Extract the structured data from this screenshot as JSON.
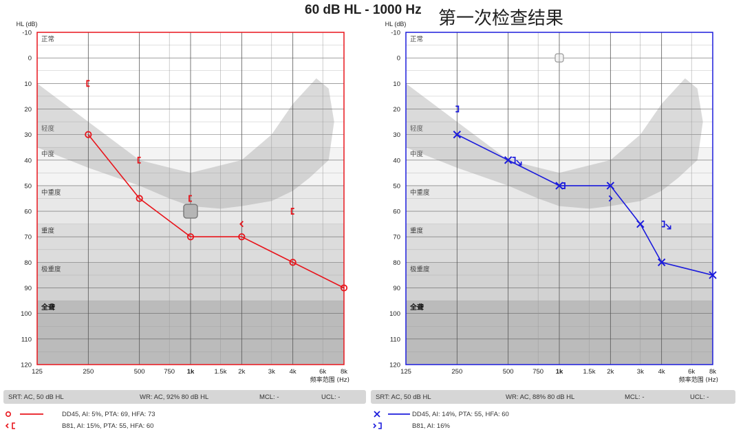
{
  "header": {
    "signal": "60 dB HL  -  1000 Hz",
    "title": "第一次检查结果"
  },
  "axes": {
    "y_label": "HL (dB)",
    "x_label": "频率范围 (Hz)",
    "y_ticks": [
      "-10",
      "0",
      "10",
      "20",
      "30",
      "40",
      "50",
      "60",
      "70",
      "80",
      "90",
      "100",
      "110",
      "120"
    ],
    "x_ticks": [
      {
        "f": 125,
        "label": "125",
        "bold": false
      },
      {
        "f": 250,
        "label": "250",
        "bold": false
      },
      {
        "f": 500,
        "label": "500",
        "bold": false
      },
      {
        "f": 750,
        "label": "750",
        "bold": false
      },
      {
        "f": 1000,
        "label": "1k",
        "bold": true
      },
      {
        "f": 1500,
        "label": "1.5k",
        "bold": false
      },
      {
        "f": 2000,
        "label": "2k",
        "bold": false
      },
      {
        "f": 3000,
        "label": "3k",
        "bold": false
      },
      {
        "f": 4000,
        "label": "4k",
        "bold": false
      },
      {
        "f": 6000,
        "label": "6k",
        "bold": false
      },
      {
        "f": 8000,
        "label": "8k",
        "bold": false
      }
    ],
    "ylim": [
      -10,
      120
    ],
    "xscale": "log",
    "xlim": [
      125,
      8000
    ]
  },
  "bands": [
    {
      "label": "正常",
      "from": -10,
      "to": 25,
      "color": "#ffffff",
      "bold": false
    },
    {
      "label": "轻度",
      "from": 25,
      "to": 35,
      "color": "#ffffff",
      "bold": false
    },
    {
      "label": "中度",
      "from": 35,
      "to": 50,
      "color": "#f4f4f4",
      "bold": false
    },
    {
      "label": "中重度",
      "from": 50,
      "to": 65,
      "color": "#e8e8e8",
      "bold": false
    },
    {
      "label": "重度",
      "from": 65,
      "to": 80,
      "color": "#dcdcdc",
      "bold": false
    },
    {
      "label": "极重度",
      "from": 80,
      "to": 95,
      "color": "#d2d2d2",
      "bold": false
    },
    {
      "label": "全聋",
      "from": 95,
      "to": 120,
      "color": "#bbbbbb",
      "bold": true
    }
  ],
  "chart_data": [
    {
      "type": "line",
      "ear": "right",
      "color": "#e8141b",
      "series": [
        {
          "name": "AC",
          "symbol": "circle",
          "x": [
            250,
            500,
            1000,
            2000,
            4000,
            8000
          ],
          "y": [
            30,
            55,
            70,
            70,
            80,
            90
          ]
        },
        {
          "name": "BC",
          "symbol": "bracket-left",
          "x": [
            250,
            500,
            1000,
            2000,
            4000
          ],
          "y": [
            10,
            40,
            55,
            65,
            60
          ]
        }
      ],
      "stimulus": {
        "x": 1000,
        "y": 60
      },
      "footer": {
        "srt": "SRT: AC, 50 dB HL",
        "wr": "WR: AC, 92% 80 dB HL",
        "mcl": "MCL: -",
        "ucl": "UCL: -"
      },
      "legend": [
        {
          "symbol": "circle-line",
          "text": "DD45, AI: 5%, PTA: 69, HFA: 73"
        },
        {
          "symbol": "bracket",
          "text": "B81, AI: 15%, PTA: 55, HFA: 60"
        }
      ]
    },
    {
      "type": "line",
      "ear": "left",
      "color": "#1b1bdc",
      "series": [
        {
          "name": "AC",
          "symbol": "x",
          "x": [
            250,
            500,
            1000,
            2000,
            3000,
            4000,
            8000
          ],
          "y": [
            30,
            40,
            50,
            50,
            65,
            80,
            85
          ]
        },
        {
          "name": "BC",
          "symbol": "bracket-right",
          "x": [
            250,
            500,
            1000,
            2000,
            4000
          ],
          "y": [
            20,
            40,
            50,
            55,
            65
          ]
        },
        {
          "name": "BC-NR",
          "symbol": "bracket-right-arrow",
          "x": [
            500,
            4000
          ],
          "y": [
            40,
            65
          ]
        }
      ],
      "stimulus": {
        "x": 1000,
        "y": 0
      },
      "footer": {
        "srt": "SRT: AC, 50 dB HL",
        "wr": "WR: AC, 88% 80 dB HL",
        "mcl": "MCL: -",
        "ucl": "UCL: -"
      },
      "legend": [
        {
          "symbol": "x-line",
          "text": "DD45, AI: 14%, PTA: 55, HFA: 60"
        },
        {
          "symbol": "bracket",
          "text": "B81, AI: 16%"
        }
      ]
    }
  ]
}
